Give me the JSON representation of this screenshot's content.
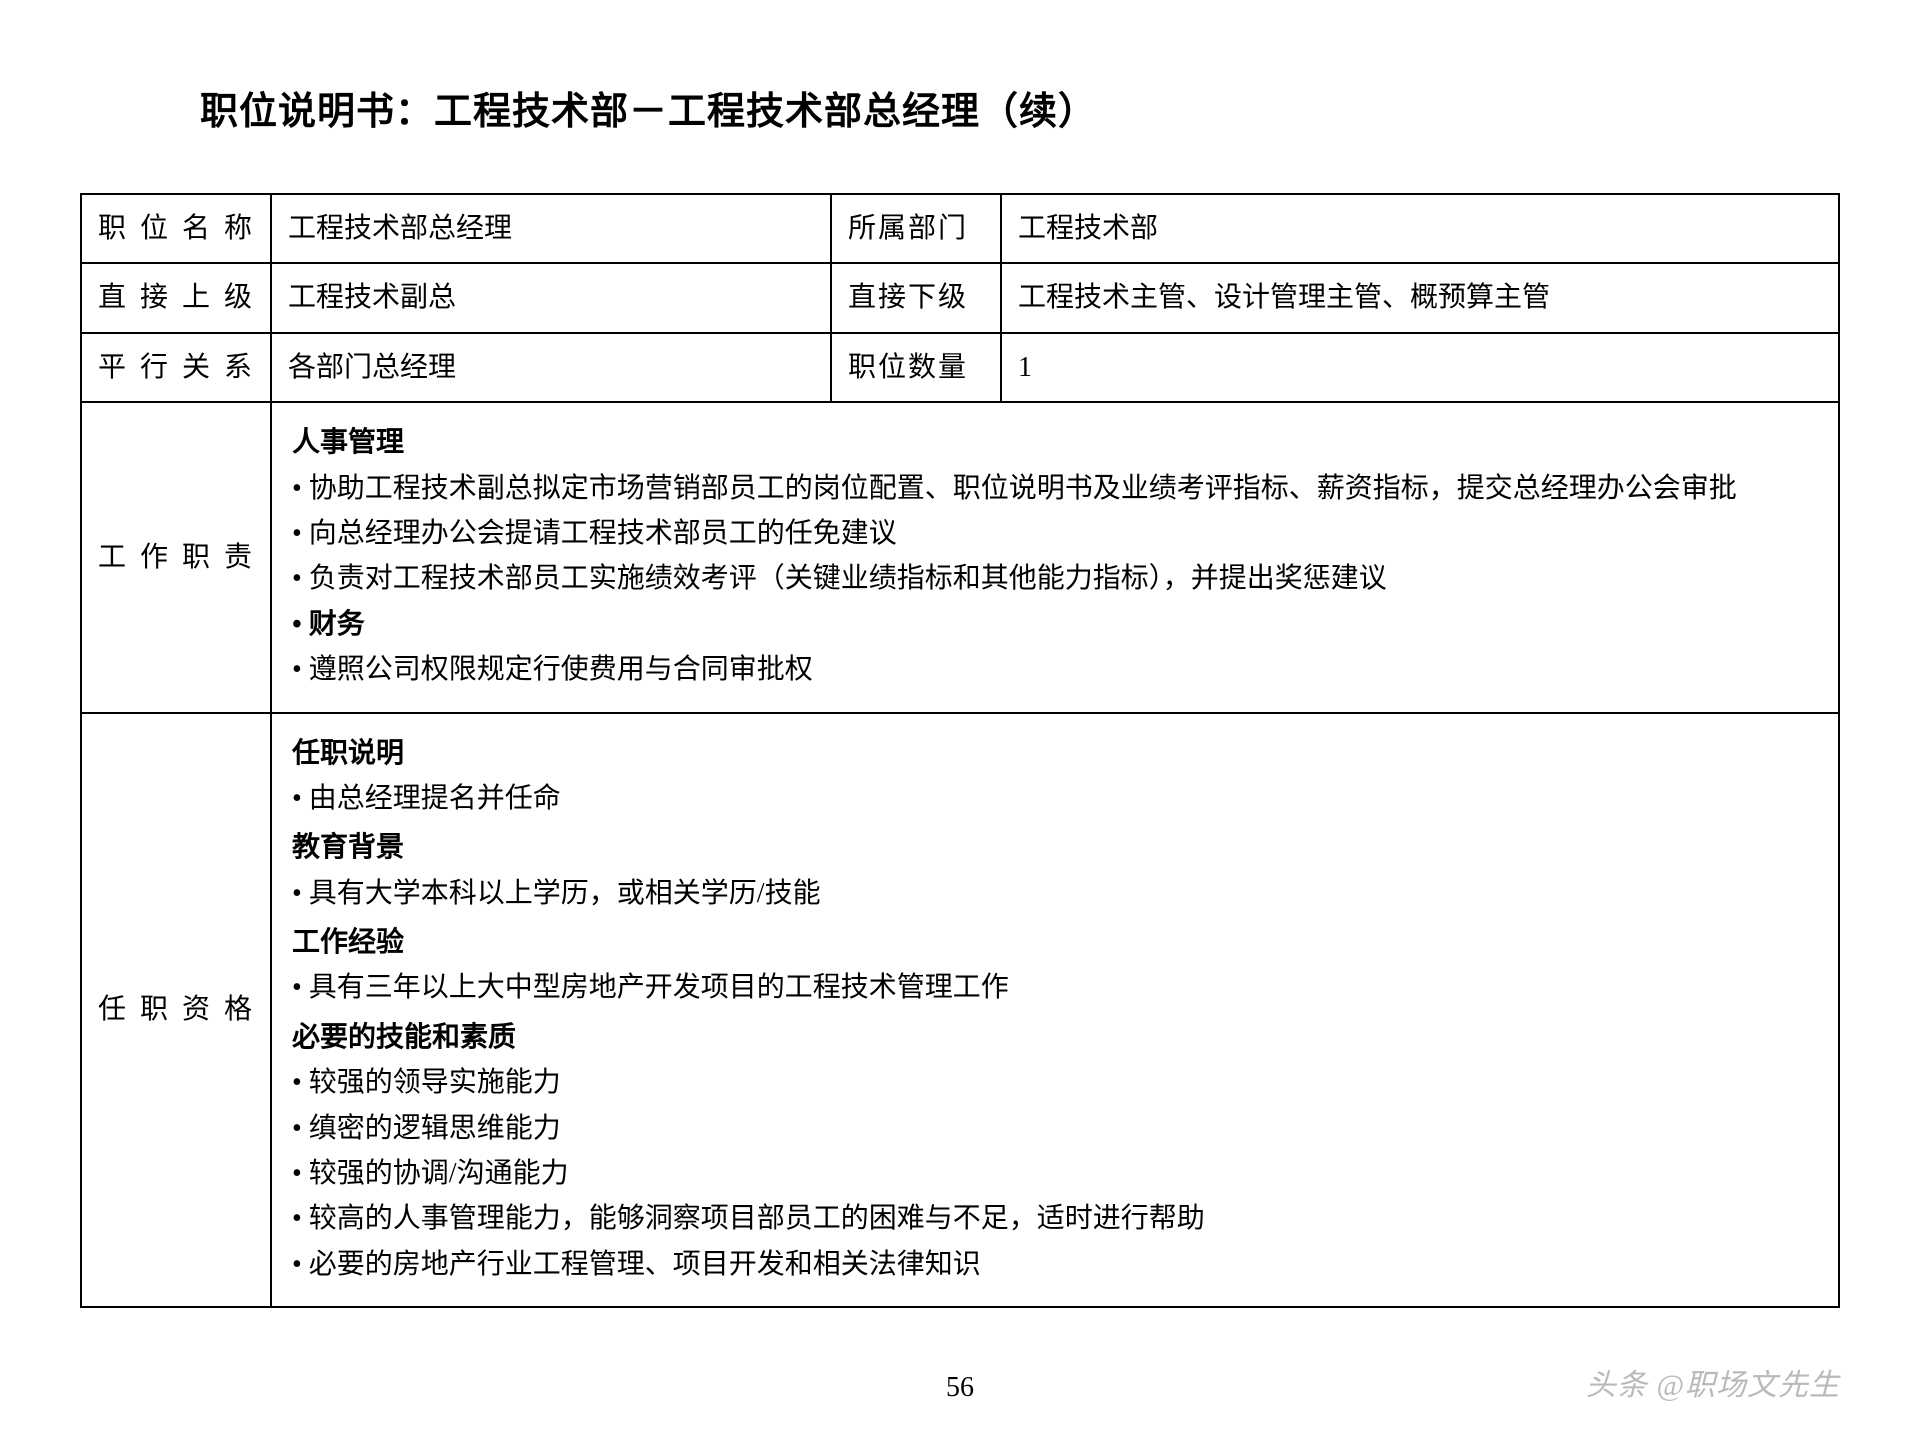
{
  "title": "职位说明书：工程技术部－工程技术部总经理（续）",
  "page_number": "56",
  "watermark": "头条 @职场文先生",
  "labels": {
    "position_name": "职位名称",
    "department": "所属部门",
    "supervisor": "直接上级",
    "subordinate": "直接下级",
    "peer": "平行关系",
    "quantity": "职位数量",
    "duties": "工作职责",
    "qualification": "任职资格"
  },
  "fields": {
    "position_name": "工程技术部总经理",
    "department": "工程技术部",
    "supervisor": "工程技术副总",
    "subordinate": "工程技术主管、设计管理主管、概预算主管",
    "peer": "各部门总经理",
    "quantity": "1"
  },
  "duties": {
    "sections": [
      {
        "heading": "人事管理",
        "items": [
          "协助工程技术副总拟定市场营销部员工的岗位配置、职位说明书及业绩考评指标、薪资指标，提交总经理办公会审批",
          "向总经理办公会提请工程技术部员工的任免建议",
          "负责对工程技术部员工实施绩效考评（关键业绩指标和其他能力指标），并提出奖惩建议"
        ]
      },
      {
        "heading": "财务",
        "items": [
          "遵照公司权限规定行使费用与合同审批权"
        ]
      }
    ]
  },
  "qualifications": {
    "sections": [
      {
        "heading": "任职说明",
        "items": [
          "由总经理提名并任命"
        ]
      },
      {
        "heading": "教育背景",
        "items": [
          "具有大学本科以上学历，或相关学历/技能"
        ]
      },
      {
        "heading": "工作经验",
        "items": [
          "具有三年以上大中型房地产开发项目的工程技术管理工作"
        ]
      },
      {
        "heading": "必要的技能和素质",
        "items": [
          "较强的领导实施能力",
          "缜密的逻辑思维能力",
          "较强的协调/沟通能力",
          "较高的人事管理能力，能够洞察项目部员工的困难与不足，适时进行帮助",
          "必要的房地产行业工程管理、项目开发和相关法律知识"
        ]
      }
    ]
  },
  "style": {
    "background": "#ffffff",
    "border_color": "#000000",
    "text_color": "#000000",
    "watermark_color": "#b9b9b9",
    "title_fontsize": 38,
    "cell_fontsize": 28
  }
}
